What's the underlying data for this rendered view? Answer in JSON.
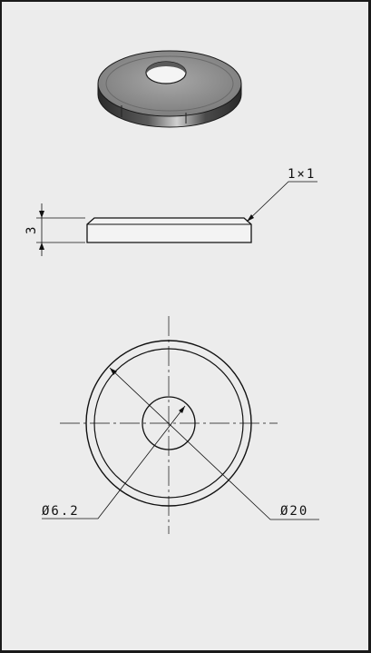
{
  "drawing": {
    "chamfer_label": "1×1",
    "thickness_label": "3",
    "inner_diameter_label": "Ø6.2",
    "outer_diameter_label": "Ø20"
  },
  "colors": {
    "paper": "#ececec",
    "line": "#111111",
    "washer_top": "#8d8d8d",
    "washer_side": "#3d3d3d",
    "washer_highlight": "#c8c8c8"
  }
}
